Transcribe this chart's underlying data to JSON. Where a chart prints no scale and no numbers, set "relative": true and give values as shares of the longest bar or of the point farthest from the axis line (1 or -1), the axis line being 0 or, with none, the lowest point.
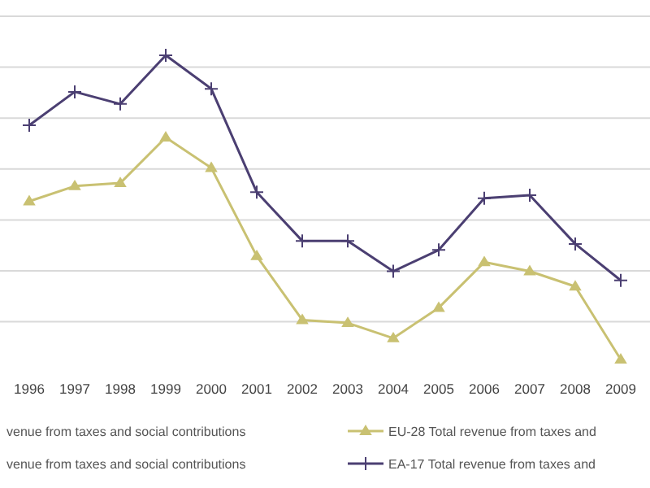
{
  "chart_data": {
    "type": "line",
    "relative": true,
    "categories": [
      "1996",
      "1997",
      "1998",
      "1999",
      "2000",
      "2001",
      "2002",
      "2003",
      "2004",
      "2005",
      "2006",
      "2007",
      "2008",
      "2009"
    ],
    "series": [
      {
        "name": "EU-28 Total revenue from taxes and",
        "color": "#c9c172",
        "marker": "triangle",
        "values": [
          0.52,
          0.57,
          0.58,
          0.73,
          0.63,
          0.34,
          0.13,
          0.12,
          0.07,
          0.17,
          0.32,
          0.29,
          0.24,
          0.0
        ]
      },
      {
        "name": "EA-17 Total revenue from taxes and",
        "color": "#4b3f72",
        "marker": "cross",
        "values": [
          0.77,
          0.88,
          0.84,
          1.0,
          0.89,
          0.55,
          0.39,
          0.39,
          0.29,
          0.36,
          0.53,
          0.54,
          0.38,
          0.26
        ]
      }
    ],
    "grid": true,
    "legend": "bottom",
    "annotations": [
      "venue from taxes and social contributions",
      "venue from taxes and social contributions"
    ]
  }
}
